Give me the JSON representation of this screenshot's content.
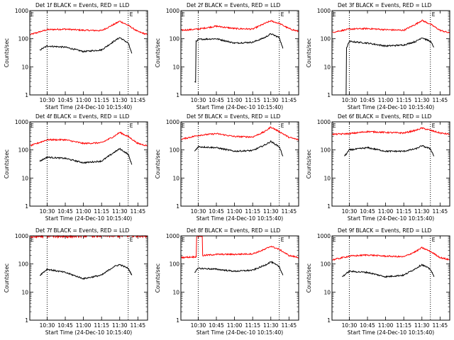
{
  "figure": {
    "ylabel": "Counts/sec",
    "xlabel": "Start Time (24-Dec-10 10:15:40)",
    "x_tick_labels": [
      "10:30",
      "10:45",
      "11:00",
      "11:15",
      "11:30",
      "11:45"
    ],
    "y_tick_labels": [
      "1",
      "10",
      "100",
      "1000"
    ],
    "marker_left": "E",
    "marker_right": "E",
    "colors": {
      "events": "#000000",
      "lld": "#ff0000",
      "axis": "#000000",
      "background": "#ffffff"
    }
  },
  "chart_data": [
    {
      "type": "line",
      "title": "Det 1f BLACK = Events, RED = LLD",
      "xlim": [
        "10:15:40",
        "11:53"
      ],
      "ylim": [
        1,
        1000
      ],
      "log_y": true,
      "vlines": [
        "10:30",
        "11:37"
      ],
      "series": [
        {
          "name": "LLD",
          "color": "#ff0000",
          "x": [
            "10:16",
            "10:30",
            "10:45",
            "11:00",
            "11:15",
            "11:25",
            "11:30",
            "11:37",
            "11:45",
            "11:53"
          ],
          "values": [
            140,
            210,
            220,
            200,
            195,
            320,
            420,
            300,
            180,
            140
          ]
        },
        {
          "name": "Events",
          "color": "#000000",
          "x": [
            "10:24",
            "10:30",
            "10:45",
            "11:00",
            "11:15",
            "11:25",
            "11:30",
            "11:37",
            "11:40"
          ],
          "values": [
            40,
            55,
            50,
            35,
            40,
            80,
            110,
            70,
            30
          ]
        }
      ]
    },
    {
      "type": "line",
      "title": "Det 2f BLACK = Events, RED = LLD",
      "xlim": [
        "10:15:40",
        "11:53"
      ],
      "ylim": [
        1,
        1000
      ],
      "log_y": true,
      "vlines": [
        "10:30",
        "11:37"
      ],
      "series": [
        {
          "name": "LLD",
          "color": "#ff0000",
          "x": [
            "10:16",
            "10:30",
            "10:45",
            "11:00",
            "11:15",
            "11:25",
            "11:30",
            "11:37",
            "11:45",
            "11:53"
          ],
          "values": [
            200,
            220,
            280,
            230,
            220,
            350,
            430,
            350,
            230,
            180
          ]
        },
        {
          "name": "Events",
          "color": "#000000",
          "x": [
            "10:27",
            "10:29",
            "10:30",
            "10:45",
            "11:00",
            "11:15",
            "11:25",
            "11:30",
            "11:37",
            "11:40"
          ],
          "values": [
            3,
            80,
            95,
            100,
            70,
            75,
            110,
            150,
            110,
            45
          ]
        }
      ]
    },
    {
      "type": "line",
      "title": "Det 3f BLACK = Events, RED = LLD",
      "xlim": [
        "10:15:40",
        "11:53"
      ],
      "ylim": [
        1,
        1000
      ],
      "log_y": true,
      "vlines": [
        "10:30",
        "11:37"
      ],
      "series": [
        {
          "name": "LLD",
          "color": "#ff0000",
          "x": [
            "10:16",
            "10:30",
            "10:45",
            "11:00",
            "11:15",
            "11:25",
            "11:30",
            "11:37",
            "11:45",
            "11:53"
          ],
          "values": [
            170,
            220,
            230,
            210,
            200,
            330,
            450,
            330,
            200,
            160
          ]
        },
        {
          "name": "Events",
          "color": "#000000",
          "x": [
            "10:27",
            "10:28",
            "10:30",
            "10:45",
            "11:00",
            "11:15",
            "11:25",
            "11:30",
            "11:37",
            "11:40"
          ],
          "values": [
            1,
            50,
            80,
            70,
            55,
            60,
            80,
            110,
            80,
            50
          ]
        }
      ]
    },
    {
      "type": "line",
      "title": "Det 4f BLACK = Events, RED = LLD",
      "xlim": [
        "10:15:40",
        "11:53"
      ],
      "ylim": [
        1,
        1000
      ],
      "log_y": true,
      "vlines": [
        "10:30",
        "11:37"
      ],
      "series": [
        {
          "name": "LLD",
          "color": "#ff0000",
          "x": [
            "10:16",
            "10:30",
            "10:45",
            "11:00",
            "11:15",
            "11:25",
            "11:30",
            "11:37",
            "11:45",
            "11:53"
          ],
          "values": [
            140,
            230,
            230,
            170,
            180,
            300,
            420,
            300,
            170,
            140
          ]
        },
        {
          "name": "Events",
          "color": "#000000",
          "x": [
            "10:24",
            "10:30",
            "10:45",
            "11:00",
            "11:15",
            "11:25",
            "11:30",
            "11:37",
            "11:40"
          ],
          "values": [
            40,
            55,
            50,
            35,
            40,
            80,
            110,
            70,
            30
          ]
        }
      ]
    },
    {
      "type": "line",
      "title": "Det 5f BLACK = Events, RED = LLD",
      "xlim": [
        "10:15:40",
        "11:53"
      ],
      "ylim": [
        1,
        1000
      ],
      "log_y": true,
      "vlines": [
        "10:30",
        "11:37"
      ],
      "series": [
        {
          "name": "LLD",
          "color": "#ff0000",
          "x": [
            "10:16",
            "10:30",
            "10:45",
            "11:00",
            "11:15",
            "11:25",
            "11:30",
            "11:37",
            "11:45",
            "11:53"
          ],
          "values": [
            240,
            330,
            380,
            300,
            290,
            450,
            650,
            450,
            280,
            230
          ]
        },
        {
          "name": "Events",
          "color": "#000000",
          "x": [
            "10:27",
            "10:30",
            "10:45",
            "11:00",
            "11:15",
            "11:25",
            "11:30",
            "11:37",
            "11:40"
          ],
          "values": [
            90,
            130,
            120,
            90,
            95,
            150,
            200,
            130,
            60
          ]
        }
      ]
    },
    {
      "type": "line",
      "title": "Det 6f BLACK = Events, RED = LLD",
      "xlim": [
        "10:15:40",
        "11:53"
      ],
      "ylim": [
        1,
        1000
      ],
      "log_y": true,
      "vlines": [
        "10:30",
        "11:37"
      ],
      "series": [
        {
          "name": "LLD",
          "color": "#ff0000",
          "x": [
            "10:16",
            "10:30",
            "10:45",
            "11:00",
            "11:15",
            "11:25",
            "11:30",
            "11:37",
            "11:45",
            "11:53"
          ],
          "values": [
            360,
            380,
            450,
            420,
            400,
            500,
            600,
            500,
            400,
            360
          ]
        },
        {
          "name": "Events",
          "color": "#000000",
          "x": [
            "10:26",
            "10:30",
            "10:45",
            "11:00",
            "11:15",
            "11:25",
            "11:30",
            "11:37",
            "11:40"
          ],
          "values": [
            60,
            100,
            120,
            90,
            90,
            110,
            140,
            110,
            60
          ]
        }
      ]
    },
    {
      "type": "line",
      "title": "Det 7f BLACK = Events, RED = LLD",
      "xlim": [
        "10:15:40",
        "11:53"
      ],
      "ylim": [
        1,
        1000
      ],
      "log_y": true,
      "vlines": [
        "10:30",
        "11:37"
      ],
      "series": [
        {
          "name": "LLD",
          "color": "#ff0000",
          "x": [
            "10:16",
            "10:30",
            "10:45",
            "11:00",
            "11:15",
            "11:30",
            "11:45",
            "11:53"
          ],
          "values": [
            900,
            1000,
            950,
            1000,
            1000,
            1000,
            1000,
            1000
          ]
        },
        {
          "name": "Events",
          "color": "#000000",
          "x": [
            "10:24",
            "10:30",
            "10:45",
            "11:00",
            "11:15",
            "11:25",
            "11:30",
            "11:37",
            "11:40"
          ],
          "values": [
            40,
            65,
            50,
            30,
            40,
            80,
            95,
            70,
            40
          ]
        }
      ]
    },
    {
      "type": "line",
      "title": "Det 8f BLACK = Events, RED = LLD",
      "xlim": [
        "10:15:40",
        "11:53"
      ],
      "ylim": [
        1,
        1000
      ],
      "log_y": true,
      "vlines": [
        "10:30",
        "11:37"
      ],
      "series": [
        {
          "name": "LLD",
          "color": "#ff0000",
          "x": [
            "10:16",
            "10:28",
            "10:29",
            "10:33",
            "10:34",
            "10:45",
            "11:00",
            "11:15",
            "11:25",
            "11:30",
            "11:37",
            "11:45",
            "11:53"
          ],
          "values": [
            170,
            180,
            1000,
            1000,
            200,
            220,
            220,
            230,
            330,
            430,
            330,
            200,
            170
          ]
        },
        {
          "name": "Events",
          "color": "#000000",
          "x": [
            "10:27",
            "10:30",
            "10:45",
            "11:00",
            "11:15",
            "11:25",
            "11:30",
            "11:37",
            "11:40"
          ],
          "values": [
            50,
            70,
            65,
            55,
            60,
            90,
            120,
            80,
            40
          ]
        }
      ]
    },
    {
      "type": "line",
      "title": "Det 9f BLACK = Events, RED = LLD",
      "xlim": [
        "10:15:40",
        "11:53"
      ],
      "ylim": [
        1,
        1000
      ],
      "log_y": true,
      "vlines": [
        "10:30",
        "11:37"
      ],
      "series": [
        {
          "name": "LLD",
          "color": "#ff0000",
          "x": [
            "10:16",
            "10:30",
            "10:45",
            "11:00",
            "11:15",
            "11:25",
            "11:30",
            "11:37",
            "11:45",
            "11:53"
          ],
          "values": [
            140,
            190,
            210,
            190,
            180,
            280,
            380,
            280,
            170,
            140
          ]
        },
        {
          "name": "Events",
          "color": "#000000",
          "x": [
            "10:24",
            "10:30",
            "10:45",
            "11:00",
            "11:15",
            "11:25",
            "11:30",
            "11:37",
            "11:40"
          ],
          "values": [
            35,
            55,
            50,
            35,
            40,
            70,
            95,
            65,
            35
          ]
        }
      ]
    }
  ]
}
